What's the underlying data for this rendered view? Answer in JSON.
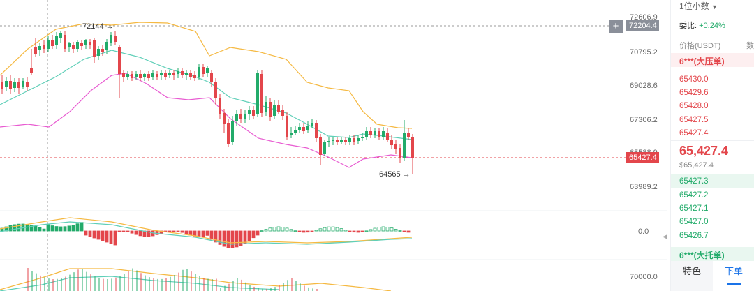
{
  "chart": {
    "price_axis": [
      "72606.9",
      "70795.2",
      "69028.6",
      "67306.2",
      "65588.9",
      "63989.2"
    ],
    "osc_axis": "0.0",
    "vol_axis": "70000.0",
    "high_tag": "72204.4",
    "last_tag": "65427.4",
    "plus_label": "+",
    "max_annotation": "72144",
    "min_annotation": "64565",
    "colors": {
      "up": "#22ab6a",
      "down": "#e3464b",
      "upper_band": "#f5b942",
      "mid_band": "#5fcfb8",
      "lower_band": "#e85bd1"
    }
  },
  "order_book": {
    "precision_label": "1位小数",
    "ratio_label": "委比:",
    "ratio_value": "+0.24%",
    "price_col": "价格(USDT)",
    "qty_col": "数",
    "big_sell_label": "6***(大压单)",
    "asks": [
      "65430.0",
      "65429.6",
      "65428.0",
      "65427.5",
      "65427.4"
    ],
    "last_price": "65,427.4",
    "last_price_usd": "$65,427.4",
    "bids": [
      "65427.3",
      "65427.2",
      "65427.1",
      "65427.0",
      "65426.7"
    ],
    "big_buy_label": "6***(大托单)",
    "tabs": [
      "特色",
      "下单"
    ]
  }
}
